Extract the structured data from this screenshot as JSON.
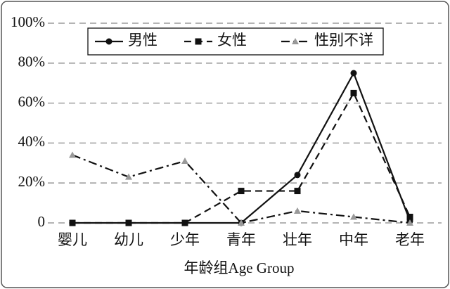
{
  "chart_data": {
    "type": "line",
    "x_label": "年龄组Age Group",
    "categories": [
      "婴儿",
      "幼儿",
      "少年",
      "青年",
      "壮年",
      "中年",
      "老年"
    ],
    "series": [
      {
        "name": "男性",
        "color": "#111111",
        "style": "solid",
        "marker": "circle",
        "values": [
          0,
          0,
          0,
          0,
          24,
          75,
          1
        ]
      },
      {
        "name": "女性",
        "color": "#111111",
        "style": "dashed",
        "marker": "square",
        "values": [
          0,
          0,
          0,
          16,
          16,
          65,
          3
        ]
      },
      {
        "name": "性别不详",
        "color": "#111111",
        "marker_color": "#999999",
        "style": "dashdot",
        "marker": "triangle",
        "values": [
          34,
          23,
          31,
          0,
          6,
          3,
          0
        ]
      }
    ],
    "ylim": [
      0,
      100
    ],
    "yticks": [
      0,
      {
        "value": 20,
        "label": "20%"
      },
      {
        "value": 40,
        "label": "40%"
      },
      {
        "value": 60,
        "label": "60%"
      },
      {
        "value": 80,
        "label": "80%"
      },
      {
        "value": 100,
        "label": "100%"
      }
    ],
    "grid": true,
    "legend": "top"
  }
}
